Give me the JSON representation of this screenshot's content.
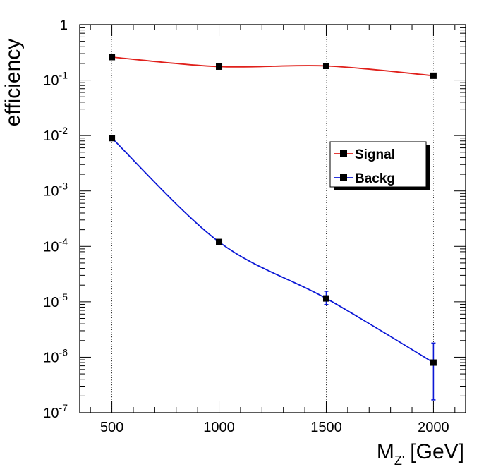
{
  "chart_data": {
    "type": "line",
    "xlabel": "M",
    "xlabel_sub": "Z'",
    "xlabel_unit": "[GeV]",
    "ylabel": "efficiency",
    "xlim": [
      350,
      2150
    ],
    "ylim": [
      1e-07,
      1
    ],
    "y_scale": "log",
    "x_ticks": [
      500,
      1000,
      1500,
      2000
    ],
    "y_ticks": [
      {
        "value": 1e-07,
        "base": "10",
        "exp": "-7"
      },
      {
        "value": 1e-06,
        "base": "10",
        "exp": "-6"
      },
      {
        "value": 1e-05,
        "base": "10",
        "exp": "-5"
      },
      {
        "value": 0.0001,
        "base": "10",
        "exp": "-4"
      },
      {
        "value": 0.001,
        "base": "10",
        "exp": "-3"
      },
      {
        "value": 0.01,
        "base": "10",
        "exp": "-2"
      },
      {
        "value": 0.1,
        "base": "10",
        "exp": "-1"
      },
      {
        "value": 1,
        "base": "1",
        "exp": ""
      }
    ],
    "grid_x": true,
    "legend_position": "right",
    "x": [
      500,
      1000,
      1500,
      2000
    ],
    "series": [
      {
        "name": "Signal",
        "color": "#e0201b",
        "values": [
          0.26,
          0.175,
          0.18,
          0.12
        ],
        "err_low": [
          null,
          null,
          null,
          null
        ],
        "err_high": [
          null,
          null,
          null,
          null
        ]
      },
      {
        "name": "Backg",
        "color": "#0b18d6",
        "values": [
          0.009,
          0.00012,
          1.15e-05,
          8e-07
        ],
        "err_low": [
          null,
          null,
          8.9e-06,
          1.7e-07
        ],
        "err_high": [
          null,
          null,
          1.55e-05,
          1.8e-06
        ]
      }
    ]
  }
}
